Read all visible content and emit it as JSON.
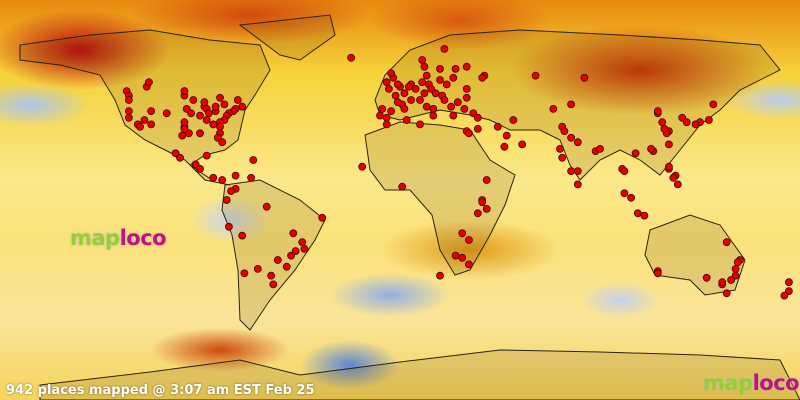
{
  "status_text": "942 places mapped @ 3:07 am EST Feb 25",
  "logo": {
    "part1": "map",
    "part2": "loco"
  },
  "colors": {
    "marker": "#e60000",
    "logo_green": "#9acd32",
    "logo_magenta": "#c0147a"
  },
  "map": {
    "projection": "equirectangular",
    "overlay": "temperature-anomaly-heatmap"
  },
  "markers_latlon": [
    [
      49,
      -123
    ],
    [
      47,
      -122
    ],
    [
      45,
      -122
    ],
    [
      40,
      -122
    ],
    [
      37,
      -122
    ],
    [
      34,
      -118
    ],
    [
      33,
      -117
    ],
    [
      36,
      -115
    ],
    [
      40,
      -112
    ],
    [
      39,
      -105
    ],
    [
      45,
      -93
    ],
    [
      41,
      -96
    ],
    [
      39,
      -94
    ],
    [
      42,
      -88
    ],
    [
      41,
      -87
    ],
    [
      40,
      -83
    ],
    [
      42,
      -83
    ],
    [
      43,
      -79
    ],
    [
      45,
      -73
    ],
    [
      42,
      -71
    ],
    [
      41,
      -74
    ],
    [
      40,
      -75
    ],
    [
      39,
      -77
    ],
    [
      38,
      -78
    ],
    [
      36,
      -79
    ],
    [
      35,
      -81
    ],
    [
      34,
      -84
    ],
    [
      33,
      -81
    ],
    [
      30,
      -81
    ],
    [
      28,
      -82
    ],
    [
      26,
      -80
    ],
    [
      30,
      -90
    ],
    [
      30,
      -95
    ],
    [
      33,
      -97
    ],
    [
      32,
      -97
    ],
    [
      35,
      -97
    ],
    [
      38,
      -90
    ],
    [
      36,
      -87
    ],
    [
      39,
      -86
    ],
    [
      44,
      -88
    ],
    [
      47,
      -97
    ],
    [
      51,
      -114
    ],
    [
      53,
      -113
    ],
    [
      49,
      -97
    ],
    [
      46,
      -81
    ],
    [
      34,
      -112
    ],
    [
      29,
      -98
    ],
    [
      19,
      -99
    ],
    [
      21,
      -101
    ],
    [
      20,
      -87
    ],
    [
      16,
      -92
    ],
    [
      14,
      -90
    ],
    [
      10,
      -84
    ],
    [
      9,
      -80
    ],
    [
      18,
      -66
    ],
    [
      11,
      -74
    ],
    [
      10,
      -67
    ],
    [
      5,
      -74
    ],
    [
      4,
      -76
    ],
    [
      0,
      -78
    ],
    [
      -12,
      -77
    ],
    [
      -16,
      -71
    ],
    [
      -23,
      -47
    ],
    [
      -22,
      -43
    ],
    [
      -25,
      -49
    ],
    [
      -30,
      -51
    ],
    [
      -34,
      -58
    ],
    [
      -33,
      -70
    ],
    [
      -31,
      -64
    ],
    [
      -19,
      -44
    ],
    [
      -15,
      -48
    ],
    [
      -8,
      -35
    ],
    [
      -3,
      -60
    ],
    [
      -27,
      -55
    ],
    [
      -38,
      -57
    ],
    [
      64,
      -22
    ],
    [
      53,
      -6
    ],
    [
      51,
      0
    ],
    [
      52,
      -1
    ],
    [
      55,
      -3
    ],
    [
      57,
      -4
    ],
    [
      50,
      -5
    ],
    [
      48,
      2
    ],
    [
      45,
      5
    ],
    [
      43,
      1
    ],
    [
      44,
      -1
    ],
    [
      47,
      -2
    ],
    [
      40,
      -4
    ],
    [
      41,
      2
    ],
    [
      37,
      -6
    ],
    [
      38,
      -9
    ],
    [
      41,
      -8
    ],
    [
      52,
      5
    ],
    [
      51,
      4
    ],
    [
      50,
      7
    ],
    [
      52,
      13
    ],
    [
      53,
      10
    ],
    [
      48,
      11
    ],
    [
      50,
      14
    ],
    [
      48,
      16
    ],
    [
      47,
      19
    ],
    [
      45,
      9
    ],
    [
      42,
      12
    ],
    [
      41,
      15
    ],
    [
      38,
      15
    ],
    [
      44,
      26
    ],
    [
      42,
      23
    ],
    [
      38,
      24
    ],
    [
      46,
      30
    ],
    [
      50,
      30
    ],
    [
      52,
      21
    ],
    [
      54,
      18
    ],
    [
      55,
      24
    ],
    [
      56,
      38
    ],
    [
      60,
      30
    ],
    [
      59,
      18
    ],
    [
      60,
      11
    ],
    [
      56,
      12
    ],
    [
      55,
      37
    ],
    [
      59,
      25
    ],
    [
      63,
      10
    ],
    [
      68,
      20
    ],
    [
      45,
      20
    ],
    [
      41,
      29
    ],
    [
      39,
      33
    ],
    [
      37,
      35
    ],
    [
      32,
      35
    ],
    [
      31,
      30
    ],
    [
      30,
      31
    ],
    [
      34,
      9
    ],
    [
      36,
      3
    ],
    [
      34,
      -6
    ],
    [
      25,
      55
    ],
    [
      24,
      47
    ],
    [
      29,
      48
    ],
    [
      33,
      44
    ],
    [
      36,
      51
    ],
    [
      15,
      -17
    ],
    [
      6,
      1
    ],
    [
      9,
      39
    ],
    [
      0,
      37
    ],
    [
      -1,
      37
    ],
    [
      -4,
      39
    ],
    [
      -6,
      35
    ],
    [
      -15,
      28
    ],
    [
      -18,
      31
    ],
    [
      -26,
      28
    ],
    [
      -29,
      31
    ],
    [
      -34,
      18
    ],
    [
      -25,
      25
    ],
    [
      55,
      83
    ],
    [
      56,
      61
    ],
    [
      43,
      77
    ],
    [
      41,
      69
    ],
    [
      33,
      73
    ],
    [
      31,
      74
    ],
    [
      28,
      77
    ],
    [
      26,
      80
    ],
    [
      23,
      72
    ],
    [
      19,
      73
    ],
    [
      13,
      77
    ],
    [
      13,
      80
    ],
    [
      22,
      88
    ],
    [
      23,
      90
    ],
    [
      7,
      80
    ],
    [
      14,
      100
    ],
    [
      13,
      101
    ],
    [
      3,
      101
    ],
    [
      1,
      104
    ],
    [
      -6,
      107
    ],
    [
      -7,
      110
    ],
    [
      14,
      121
    ],
    [
      15,
      121
    ],
    [
      11,
      124
    ],
    [
      10,
      123
    ],
    [
      7,
      125
    ],
    [
      21,
      106
    ],
    [
      22,
      114
    ],
    [
      23,
      113
    ],
    [
      31,
      121
    ],
    [
      30,
      120
    ],
    [
      32,
      119
    ],
    [
      35,
      118
    ],
    [
      39,
      116
    ],
    [
      40,
      116
    ],
    [
      37,
      127
    ],
    [
      35,
      129
    ],
    [
      36,
      139
    ],
    [
      35,
      135
    ],
    [
      34,
      133
    ],
    [
      43,
      141
    ],
    [
      25,
      121
    ],
    [
      -27,
      153
    ],
    [
      -28,
      152
    ],
    [
      -31,
      151
    ],
    [
      -34,
      151
    ],
    [
      -36,
      149
    ],
    [
      -38,
      145
    ],
    [
      -37,
      145
    ],
    [
      -35,
      138
    ],
    [
      -32,
      116
    ],
    [
      -33,
      116
    ],
    [
      -42,
      147
    ],
    [
      -19,
      147
    ],
    [
      -37,
      175
    ],
    [
      -41,
      175
    ],
    [
      -43,
      173
    ]
  ]
}
